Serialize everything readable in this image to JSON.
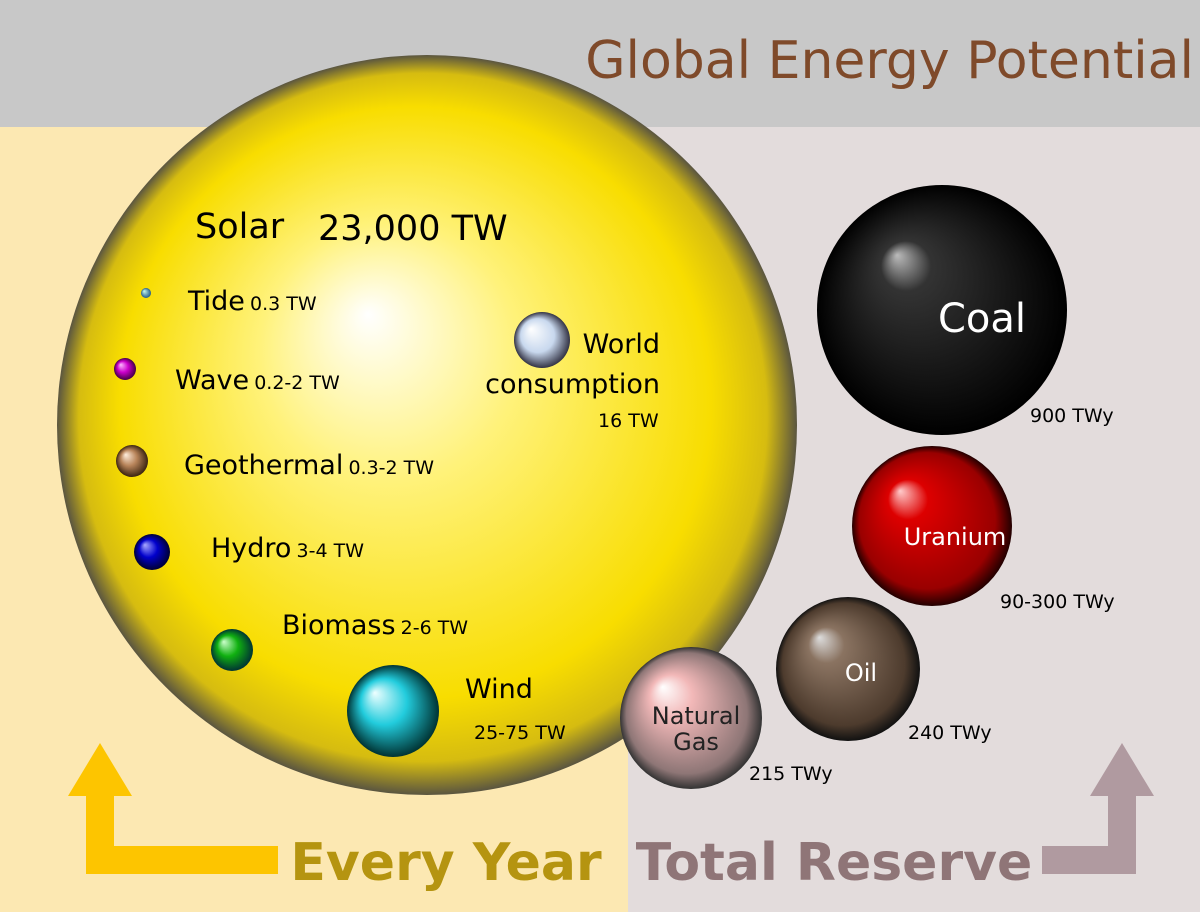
{
  "title": "Global Energy Potential",
  "solar": {
    "name": "Solar",
    "value": "23,000 TW"
  },
  "annual_sources": [
    {
      "name": "Tide",
      "value": "0.3 TW"
    },
    {
      "name": "Wave",
      "value": "0.2-2 TW"
    },
    {
      "name": "Geothermal",
      "value": "0.3-2 TW"
    },
    {
      "name": "Hydro",
      "value": "3-4 TW"
    },
    {
      "name": "Biomass",
      "value": "2-6 TW"
    },
    {
      "name": "Wind",
      "value": "25-75 TW"
    }
  ],
  "world_consumption": {
    "name_lines": [
      "World",
      "consumption"
    ],
    "value": "16 TW"
  },
  "reserves": [
    {
      "name_lines": [
        "Coal"
      ],
      "value": "900 TWy"
    },
    {
      "name_lines": [
        "Uranium"
      ],
      "value": "90-300 TWy"
    },
    {
      "name_lines": [
        "Oil"
      ],
      "value": "240 TWy"
    },
    {
      "name_lines": [
        "Natural",
        "Gas"
      ],
      "value": "215 TWy"
    }
  ],
  "footer": {
    "left": "Every Year",
    "right": "Total Reserve"
  }
}
